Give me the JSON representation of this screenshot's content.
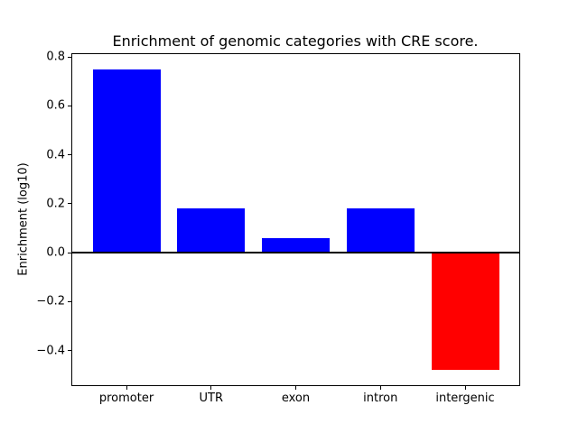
{
  "chart_data": {
    "type": "bar",
    "title": "Enrichment of genomic categories with CRE score.",
    "xlabel": "",
    "ylabel": "Enrichment (log10)",
    "categories": [
      "promoter",
      "UTR",
      "exon",
      "intron",
      "intergenic"
    ],
    "values": [
      0.75,
      0.18,
      0.06,
      0.18,
      -0.48
    ],
    "bar_colors": [
      "#0000ff",
      "#0000ff",
      "#0000ff",
      "#0000ff",
      "#ff0000"
    ],
    "positive_color": "#0000ff",
    "negative_color": "#ff0000",
    "axis_color": "#000000",
    "background_color": "#ffffff",
    "yticks": [
      0.8,
      0.6,
      0.4,
      0.2,
      0.0,
      -0.2,
      -0.4
    ],
    "ytick_labels": [
      "0.8",
      "0.6",
      "0.4",
      "0.2",
      "0.0",
      "−0.2",
      "−0.4"
    ],
    "ylim": [
      -0.5415,
      0.8115
    ],
    "xlim": [
      -0.64,
      4.64
    ],
    "bar_width": 0.8,
    "grid": false,
    "zero_line": true,
    "legend": null
  }
}
